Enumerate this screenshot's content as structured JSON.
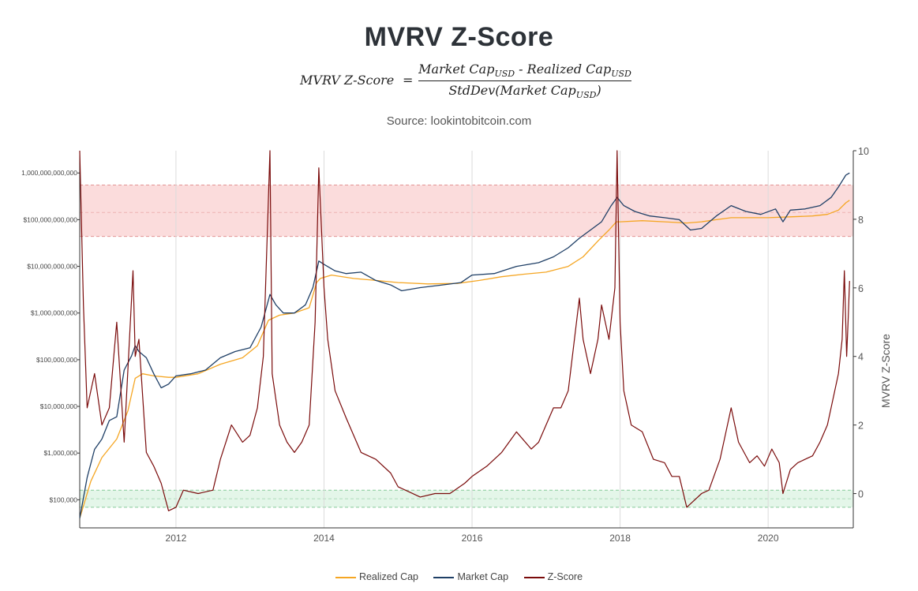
{
  "header": {
    "title": "MVRV Z-Score",
    "formula_lhs": "MVRV Z-Score",
    "formula_eq": "=",
    "formula_num_a": "Market Cap",
    "formula_num_sub_a": "USD",
    "formula_num_mid": " - Realized Cap",
    "formula_num_sub_b": "USD",
    "formula_den_a": "StdDev(Market Cap",
    "formula_den_sub": "USD",
    "formula_den_b": ")",
    "source": "Source: lookintobitcoin.com"
  },
  "colors": {
    "realized": "#f5a623",
    "market": "#1f3f66",
    "zscore": "#7a0b0b",
    "red_band": "#fbdcdc",
    "green_band": "#e4f6e9"
  },
  "chart_data": {
    "type": "line",
    "title": "MVRV Z-Score",
    "xlabel": "",
    "ylabel_left": "",
    "ylabel_right": "MVRV Z-Score",
    "x_range": [
      2010.7,
      2021.15
    ],
    "x_ticks": [
      2012,
      2014,
      2016,
      2018,
      2020
    ],
    "x_tick_labels": [
      "2012",
      "2014",
      "2016",
      "2018",
      "2020"
    ],
    "y_left_scale": "log",
    "y_left_range": [
      25000,
      3000000000000
    ],
    "y_left_ticks": [
      100000,
      1000000,
      10000000,
      100000000,
      1000000000,
      10000000000,
      100000000000,
      1000000000000
    ],
    "y_left_tick_labels": [
      "$100,000",
      "$1,000,000",
      "$10,000,000",
      "$100,000,000",
      "$1,000,000,000",
      "$10,000,000,000",
      "$100,000,000,000",
      "1,000,000,000,000"
    ],
    "y_right_range": [
      -1,
      10
    ],
    "y_right_ticks": [
      0,
      2,
      4,
      6,
      8,
      10
    ],
    "y_right_tick_labels": [
      "0",
      "2",
      "4",
      "6",
      "8",
      "10"
    ],
    "bands": [
      {
        "name": "overvalued-zone",
        "axis": "right",
        "from": 7.5,
        "to": 9.0,
        "mid": 8.2,
        "color": "#fbdcdc"
      },
      {
        "name": "undervalued-zone",
        "axis": "right",
        "from": -0.4,
        "to": 0.1,
        "mid": -0.15,
        "color": "#e4f6e9"
      }
    ],
    "legend_position": "bottom-center",
    "series": [
      {
        "name": "Realized Cap",
        "axis": "left",
        "color": "#f5a623",
        "x": [
          2010.7,
          2010.85,
          2011.0,
          2011.2,
          2011.35,
          2011.45,
          2011.55,
          2011.7,
          2011.9,
          2012.0,
          2012.3,
          2012.6,
          2012.9,
          2013.1,
          2013.25,
          2013.4,
          2013.6,
          2013.8,
          2013.9,
          2013.95,
          2014.1,
          2014.4,
          2014.7,
          2015.0,
          2015.4,
          2015.8,
          2016.1,
          2016.4,
          2016.7,
          2017.0,
          2017.3,
          2017.5,
          2017.7,
          2017.85,
          2017.95,
          2018.0,
          2018.3,
          2018.6,
          2018.9,
          2019.1,
          2019.3,
          2019.5,
          2019.8,
          2020.0,
          2020.3,
          2020.6,
          2020.8,
          2020.95,
          2021.05,
          2021.1
        ],
        "y": [
          40000,
          250000,
          800000,
          2000000,
          8000000,
          40000000,
          50000000,
          45000000,
          42000000,
          42000000,
          50000000,
          80000000,
          110000000,
          200000000,
          700000000,
          900000000,
          1000000000,
          1300000000,
          4500000000,
          5500000000,
          6500000000,
          5500000000,
          5000000000,
          4500000000,
          4200000000,
          4300000000,
          5000000000,
          6000000000,
          6800000000,
          7500000000,
          10000000000,
          16000000000,
          35000000000,
          60000000000,
          90000000000,
          90000000000,
          95000000000,
          90000000000,
          85000000000,
          90000000000,
          100000000000,
          110000000000,
          110000000000,
          110000000000,
          115000000000,
          120000000000,
          130000000000,
          160000000000,
          230000000000,
          260000000000
        ]
      },
      {
        "name": "Market Cap",
        "axis": "left",
        "color": "#1f3f66",
        "x": [
          2010.7,
          2010.8,
          2010.9,
          2011.0,
          2011.1,
          2011.2,
          2011.3,
          2011.4,
          2011.45,
          2011.5,
          2011.6,
          2011.7,
          2011.8,
          2011.9,
          2012.0,
          2012.2,
          2012.4,
          2012.6,
          2012.8,
          2013.0,
          2013.15,
          2013.27,
          2013.35,
          2013.45,
          2013.6,
          2013.75,
          2013.85,
          2013.93,
          2014.0,
          2014.15,
          2014.3,
          2014.5,
          2014.7,
          2014.9,
          2015.05,
          2015.3,
          2015.6,
          2015.85,
          2016.0,
          2016.3,
          2016.6,
          2016.9,
          2017.1,
          2017.3,
          2017.45,
          2017.6,
          2017.75,
          2017.88,
          2017.96,
          2018.05,
          2018.2,
          2018.4,
          2018.6,
          2018.8,
          2018.95,
          2019.1,
          2019.3,
          2019.5,
          2019.7,
          2019.9,
          2020.1,
          2020.2,
          2020.3,
          2020.5,
          2020.7,
          2020.85,
          2020.95,
          2021.05,
          2021.1
        ],
        "y": [
          40000,
          300000,
          1200000,
          2000000,
          5000000,
          6000000,
          60000000,
          120000000,
          200000000,
          150000000,
          110000000,
          50000000,
          25000000,
          30000000,
          45000000,
          50000000,
          60000000,
          110000000,
          150000000,
          180000000,
          500000000,
          2500000000,
          1500000000,
          1000000000,
          1000000000,
          1500000000,
          3500000000,
          13000000000,
          11000000000,
          8000000000,
          7000000000,
          7500000000,
          5000000000,
          4000000000,
          3000000000,
          3500000000,
          4000000000,
          4500000000,
          6500000000,
          7000000000,
          10000000000,
          12000000000,
          16000000000,
          25000000000,
          40000000000,
          60000000000,
          90000000000,
          200000000000,
          300000000000,
          200000000000,
          150000000000,
          120000000000,
          110000000000,
          100000000000,
          60000000000,
          65000000000,
          120000000000,
          200000000000,
          150000000000,
          130000000000,
          170000000000,
          90000000000,
          160000000000,
          170000000000,
          200000000000,
          300000000000,
          500000000000,
          900000000000,
          1000000000000
        ]
      },
      {
        "name": "Z-Score",
        "axis": "right",
        "color": "#7a0b0b",
        "x": [
          2010.7,
          2010.75,
          2010.8,
          2010.9,
          2011.0,
          2011.1,
          2011.2,
          2011.3,
          2011.42,
          2011.45,
          2011.5,
          2011.6,
          2011.7,
          2011.8,
          2011.9,
          2012.0,
          2012.1,
          2012.3,
          2012.5,
          2012.6,
          2012.75,
          2012.9,
          2013.0,
          2013.1,
          2013.18,
          2013.27,
          2013.3,
          2013.4,
          2013.5,
          2013.6,
          2013.7,
          2013.8,
          2013.88,
          2013.93,
          2014.0,
          2014.05,
          2014.15,
          2014.3,
          2014.5,
          2014.7,
          2014.9,
          2015.0,
          2015.1,
          2015.3,
          2015.5,
          2015.7,
          2015.9,
          2016.0,
          2016.2,
          2016.4,
          2016.5,
          2016.6,
          2016.8,
          2016.9,
          2017.0,
          2017.1,
          2017.2,
          2017.3,
          2017.45,
          2017.5,
          2017.6,
          2017.7,
          2017.75,
          2017.85,
          2017.93,
          2017.96,
          2018.0,
          2018.05,
          2018.15,
          2018.3,
          2018.45,
          2018.6,
          2018.7,
          2018.8,
          2018.9,
          2018.95,
          2019.1,
          2019.2,
          2019.35,
          2019.5,
          2019.6,
          2019.75,
          2019.85,
          2019.95,
          2020.05,
          2020.15,
          2020.2,
          2020.3,
          2020.4,
          2020.5,
          2020.6,
          2020.7,
          2020.8,
          2020.85,
          2020.95,
          2021.0,
          2021.03,
          2021.06,
          2021.08,
          2021.1
        ],
        "y": [
          10.0,
          5.5,
          2.5,
          3.5,
          2.0,
          2.5,
          5.0,
          1.5,
          6.5,
          4.0,
          4.5,
          1.2,
          0.8,
          0.3,
          -0.5,
          -0.4,
          0.1,
          0.0,
          0.1,
          1.0,
          2.0,
          1.5,
          1.7,
          2.5,
          4.0,
          10.0,
          3.5,
          2.0,
          1.5,
          1.2,
          1.5,
          2.0,
          5.0,
          9.5,
          6.0,
          4.5,
          3.0,
          2.2,
          1.2,
          1.0,
          0.6,
          0.2,
          0.1,
          -0.1,
          0.0,
          0.0,
          0.3,
          0.5,
          0.8,
          1.2,
          1.5,
          1.8,
          1.3,
          1.5,
          2.0,
          2.5,
          2.5,
          3.0,
          5.7,
          4.5,
          3.5,
          4.5,
          5.5,
          4.5,
          6.0,
          10.0,
          5.0,
          3.0,
          2.0,
          1.8,
          1.0,
          0.9,
          0.5,
          0.5,
          -0.4,
          -0.3,
          0.0,
          0.1,
          1.0,
          2.5,
          1.5,
          0.9,
          1.1,
          0.8,
          1.3,
          0.9,
          0.0,
          0.7,
          0.9,
          1.0,
          1.1,
          1.5,
          2.0,
          2.5,
          3.5,
          4.5,
          6.5,
          4.0,
          5.0,
          6.2
        ]
      }
    ]
  }
}
